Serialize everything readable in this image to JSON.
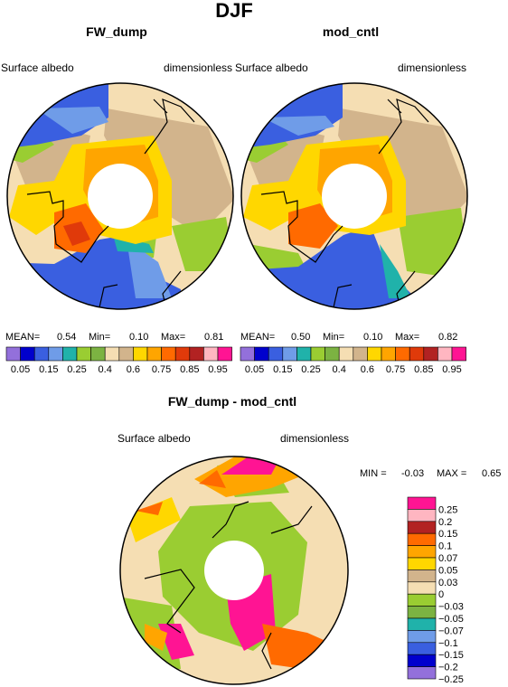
{
  "figure": {
    "title": "DJF"
  },
  "chart_data": [
    {
      "type": "heatmap",
      "title": "FW_dump",
      "left_label": "Surface albedo",
      "right_label": "dimensionless",
      "projection": "polar-stereographic",
      "stats": {
        "mean_label": "MEAN=",
        "mean": "0.54",
        "min_label": "Min=",
        "min": "0.10",
        "max_label": "Max=",
        "max": "0.81"
      }
    },
    {
      "type": "heatmap",
      "title": "mod_cntl",
      "left_label": "Surface albedo",
      "right_label": "dimensionless",
      "projection": "polar-stereographic",
      "stats": {
        "mean_label": "MEAN=",
        "mean": "0.50",
        "min_label": "Min=",
        "min": "0.10",
        "max_label": "Max=",
        "max": "0.82"
      }
    },
    {
      "type": "heatmap",
      "title": "FW_dump - mod_cntl",
      "left_label": "Surface albedo",
      "right_label": "dimensionless",
      "projection": "polar-stereographic",
      "stats": {
        "min_label": "MIN =",
        "min": "-0.03",
        "max_label": "MAX =",
        "max": "0.65"
      }
    }
  ],
  "colorbar_top": {
    "colors": [
      "#9370db",
      "#0000cd",
      "#3a5fe0",
      "#6f9ce8",
      "#20b2aa",
      "#9acd32",
      "#7cb342",
      "#f5deb3",
      "#d2b48c",
      "#ffd700",
      "#ffa500",
      "#ff6a00",
      "#e03a0a",
      "#b22222",
      "#ffb6c1",
      "#ff1493"
    ],
    "labels": [
      "0.05",
      "0.15",
      "0.25",
      "0.4",
      "0.6",
      "0.75",
      "0.85",
      "0.95"
    ]
  },
  "colorbar_diff": {
    "colors": [
      "#9370db",
      "#0000cd",
      "#3a5fe0",
      "#6f9ce8",
      "#20b2aa",
      "#7cb342",
      "#9acd32",
      "#f5deb3",
      "#d2b48c",
      "#ffd700",
      "#ffa500",
      "#ff6a00",
      "#b22222",
      "#ffb6c1",
      "#ff1493"
    ],
    "labels": [
      "-0.25",
      "-0.2",
      "-0.15",
      "-0.1",
      "-0.07",
      "-0.05",
      "-0.03",
      "0",
      "0.03",
      "0.05",
      "0.07",
      "0.1",
      "0.15",
      "0.2",
      "0.25"
    ]
  }
}
